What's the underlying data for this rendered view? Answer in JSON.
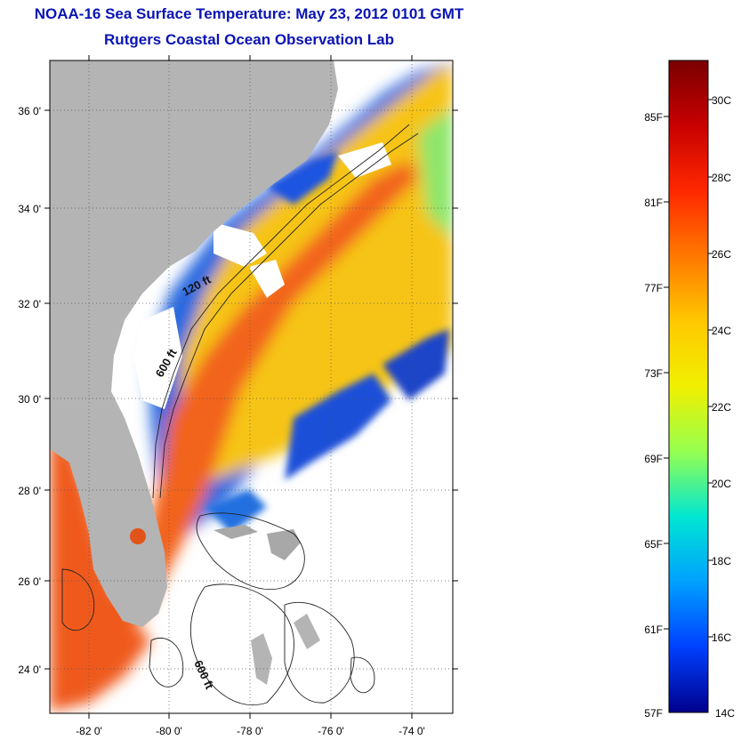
{
  "header": {
    "title": "NOAA-16 Sea Surface Temperature:  May 23, 2012 0101 GMT",
    "subtitle": "Rutgers Coastal Ocean Observation Lab"
  },
  "map": {
    "lat_labels": [
      "36 0'",
      "34 0'",
      "32 0'",
      "30 0'",
      "28 0'",
      "26 0'",
      "24 0'"
    ],
    "lon_labels": [
      "-82 0'",
      "-80 0'",
      "-78 0'",
      "-76 0'",
      "-74 0'"
    ],
    "isobath_labels": [
      "120 ft",
      "600 ft",
      "600 ft"
    ],
    "colors": {
      "land": "#b4b4b4",
      "cloud": "#ffffff",
      "sst_warm": "#f05a14",
      "sst_mid": "#fabe14",
      "sst_cool": "#0a50dc"
    }
  },
  "colorbar": {
    "fahrenheit_labels": [
      "85F",
      "81F",
      "77F",
      "73F",
      "69F",
      "65F",
      "61F",
      "57F"
    ],
    "celsius_labels": [
      "30C",
      "28C",
      "26C",
      "24C",
      "22C",
      "20C",
      "18C",
      "16C",
      "14C"
    ],
    "gradient_colors": [
      "#7a0000",
      "#c80000",
      "#ff2800",
      "#ff7800",
      "#ffc800",
      "#f0f000",
      "#96ff50",
      "#00e6d2",
      "#00a0ff",
      "#0040ff",
      "#00008c"
    ]
  }
}
